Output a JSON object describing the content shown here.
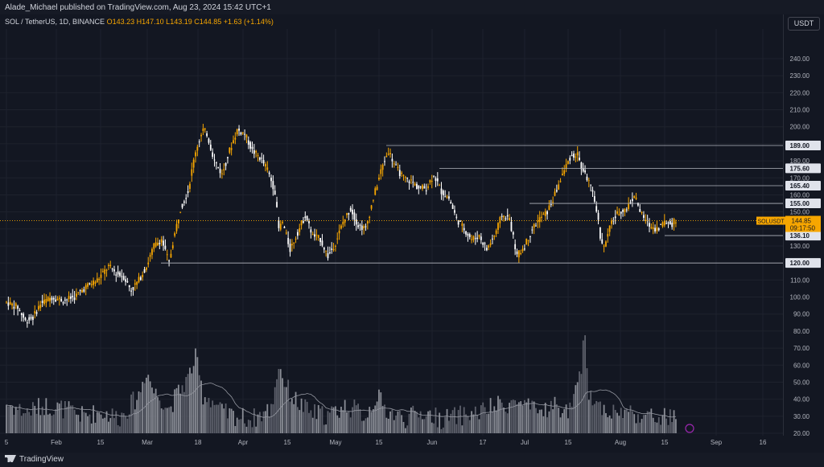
{
  "header": {
    "published": "Alade_Michael published on TradingView.com, Aug 23, 2024 15:42 UTC+1"
  },
  "legend": {
    "symbol": "SOL / TetherUS, 1D, BINANCE",
    "o_label": "O",
    "o": "143.23",
    "h_label": "H",
    "h": "147.10",
    "l_label": "L",
    "l": "143.19",
    "c_label": "C",
    "c": "144.85",
    "change": "+1.63 (+1.14%)"
  },
  "currency": "USDT",
  "footer": {
    "brand": "TradingView"
  },
  "colors": {
    "up": "#f7a600",
    "down": "#ffffff",
    "grid": "#1e222d",
    "level": "#b2b5be"
  },
  "chart_data": {
    "type": "candlestick",
    "y_ticks": [
      240,
      230,
      220,
      210,
      200,
      190,
      180,
      170,
      160,
      150,
      140,
      130,
      120,
      110,
      100,
      90,
      80,
      70,
      60,
      50,
      40,
      30,
      20
    ],
    "y_tick_labels": [
      "240.00",
      "230.00",
      "220.00",
      "210.00",
      "200.00",
      "190.00",
      "180.00",
      "170.00",
      "160.00",
      "150.00",
      "140.00",
      "130.00",
      "120.00",
      "110.00",
      "100.00",
      "90.00",
      "80.00",
      "70.00",
      "60.00",
      "50.00",
      "40.00",
      "30.00",
      "20.00"
    ],
    "x_ticks": [
      "5",
      "Feb",
      "15",
      "Mar",
      "18",
      "Apr",
      "15",
      "May",
      "15",
      "Jun",
      "17",
      "Jul",
      "15",
      "Aug",
      "15",
      "Sep",
      "16"
    ],
    "levels": [
      189.0,
      175.6,
      165.4,
      155.0,
      136.1,
      120.0
    ],
    "level_labels": [
      "189.00",
      "175.60",
      "165.40",
      "155.00",
      "136.10",
      "120.00"
    ],
    "current_price": {
      "symbol": "SOLUSDT",
      "price": "144.85",
      "countdown": "09:17:50"
    },
    "anchors": [
      [
        0,
        97
      ],
      [
        6,
        94
      ],
      [
        10,
        86
      ],
      [
        14,
        88
      ],
      [
        18,
        96
      ],
      [
        24,
        100
      ],
      [
        30,
        98
      ],
      [
        36,
        100
      ],
      [
        42,
        106
      ],
      [
        48,
        110
      ],
      [
        54,
        118
      ],
      [
        58,
        114
      ],
      [
        62,
        112
      ],
      [
        66,
        104
      ],
      [
        70,
        110
      ],
      [
        74,
        118
      ],
      [
        78,
        130
      ],
      [
        82,
        134
      ],
      [
        86,
        120
      ],
      [
        88,
        132
      ],
      [
        92,
        152
      ],
      [
        96,
        162
      ],
      [
        100,
        186
      ],
      [
        104,
        198
      ],
      [
        106,
        196
      ],
      [
        110,
        180
      ],
      [
        114,
        172
      ],
      [
        118,
        186
      ],
      [
        122,
        198
      ],
      [
        126,
        196
      ],
      [
        130,
        186
      ],
      [
        134,
        182
      ],
      [
        138,
        175
      ],
      [
        142,
        162
      ],
      [
        144,
        140
      ],
      [
        146,
        144
      ],
      [
        150,
        128
      ],
      [
        154,
        138
      ],
      [
        158,
        148
      ],
      [
        162,
        136
      ],
      [
        166,
        134
      ],
      [
        170,
        124
      ],
      [
        174,
        132
      ],
      [
        178,
        144
      ],
      [
        182,
        152
      ],
      [
        186,
        142
      ],
      [
        190,
        140
      ],
      [
        194,
        158
      ],
      [
        198,
        174
      ],
      [
        202,
        186
      ],
      [
        206,
        176
      ],
      [
        210,
        170
      ],
      [
        214,
        168
      ],
      [
        218,
        164
      ],
      [
        222,
        164
      ],
      [
        226,
        172
      ],
      [
        230,
        162
      ],
      [
        234,
        158
      ],
      [
        238,
        146
      ],
      [
        242,
        140
      ],
      [
        246,
        134
      ],
      [
        250,
        136
      ],
      [
        254,
        128
      ],
      [
        258,
        136
      ],
      [
        262,
        148
      ],
      [
        266,
        146
      ],
      [
        270,
        124
      ],
      [
        274,
        130
      ],
      [
        278,
        140
      ],
      [
        282,
        146
      ],
      [
        286,
        150
      ],
      [
        290,
        160
      ],
      [
        294,
        172
      ],
      [
        298,
        182
      ],
      [
        302,
        184
      ],
      [
        304,
        176
      ],
      [
        308,
        168
      ],
      [
        312,
        152
      ],
      [
        314,
        136
      ],
      [
        316,
        129
      ],
      [
        320,
        144
      ],
      [
        324,
        150
      ],
      [
        328,
        152
      ],
      [
        332,
        160
      ],
      [
        336,
        148
      ],
      [
        340,
        142
      ],
      [
        344,
        140
      ],
      [
        348,
        144
      ],
      [
        352,
        143
      ],
      [
        354,
        145
      ]
    ],
    "volume_anchors": [
      [
        0,
        35
      ],
      [
        10,
        30
      ],
      [
        20,
        34
      ],
      [
        30,
        32
      ],
      [
        40,
        28
      ],
      [
        50,
        30
      ],
      [
        60,
        27
      ],
      [
        70,
        40
      ],
      [
        74,
        55
      ],
      [
        78,
        42
      ],
      [
        82,
        38
      ],
      [
        86,
        32
      ],
      [
        90,
        40
      ],
      [
        96,
        50
      ],
      [
        100,
        62
      ],
      [
        104,
        40
      ],
      [
        108,
        38
      ],
      [
        114,
        30
      ],
      [
        120,
        28
      ],
      [
        130,
        26
      ],
      [
        140,
        32
      ],
      [
        144,
        58
      ],
      [
        148,
        45
      ],
      [
        152,
        38
      ],
      [
        160,
        30
      ],
      [
        170,
        28
      ],
      [
        180,
        34
      ],
      [
        190,
        28
      ],
      [
        196,
        40
      ],
      [
        200,
        32
      ],
      [
        210,
        26
      ],
      [
        220,
        30
      ],
      [
        230,
        26
      ],
      [
        240,
        28
      ],
      [
        250,
        30
      ],
      [
        260,
        34
      ],
      [
        270,
        36
      ],
      [
        280,
        30
      ],
      [
        290,
        34
      ],
      [
        296,
        30
      ],
      [
        300,
        36
      ],
      [
        304,
        54
      ],
      [
        306,
        80
      ],
      [
        308,
        42
      ],
      [
        312,
        35
      ],
      [
        320,
        30
      ],
      [
        330,
        30
      ],
      [
        340,
        27
      ],
      [
        354,
        27
      ]
    ],
    "volume_ma_note": ""
  }
}
